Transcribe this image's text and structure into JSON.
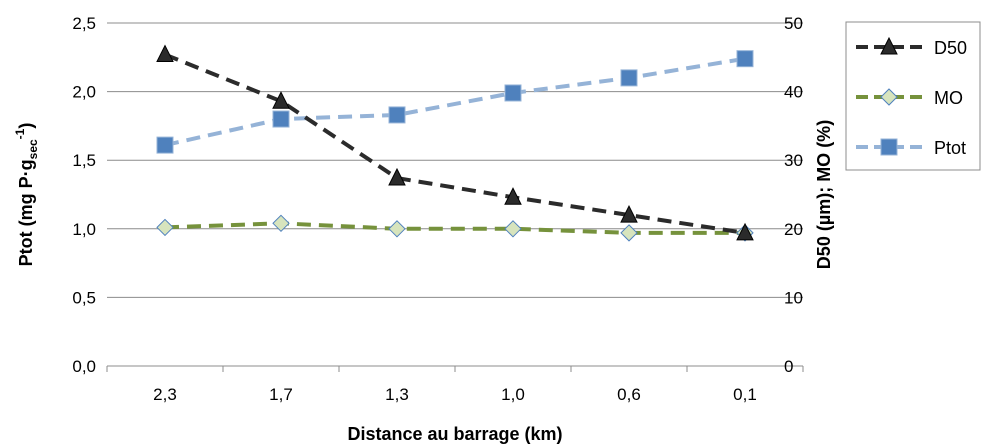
{
  "chart_data": {
    "type": "line",
    "categories": [
      "2,3",
      "1,7",
      "1,3",
      "1,0",
      "0,6",
      "0,1"
    ],
    "xlabel": "Distance au barrage (km)",
    "ylabel_left": {
      "main": "Ptot (mg P·g",
      "sub": "sec",
      "sup": "-1",
      "close": ")"
    },
    "ylabel_right": "D50 (µm); MO (%)",
    "y_left": {
      "min": 0,
      "max": 2.5,
      "ticks": [
        {
          "value": 0,
          "label": "0,0"
        },
        {
          "value": 0.5,
          "label": "0,5"
        },
        {
          "value": 1.0,
          "label": "1,0"
        },
        {
          "value": 1.5,
          "label": "1,5"
        },
        {
          "value": 2.0,
          "label": "2,0"
        },
        {
          "value": 2.5,
          "label": "2,5"
        }
      ]
    },
    "y_right": {
      "min": 0,
      "max": 50,
      "ticks": [
        {
          "value": 0,
          "label": "0"
        },
        {
          "value": 10,
          "label": "10"
        },
        {
          "value": 20,
          "label": "20"
        },
        {
          "value": 30,
          "label": "30"
        },
        {
          "value": 40,
          "label": "40"
        },
        {
          "value": 50,
          "label": "50"
        }
      ]
    },
    "grid": true,
    "legend_position": "right",
    "series": [
      {
        "name": "D50",
        "axis": "right",
        "values": [
          45.4,
          38.6,
          27.4,
          24.6,
          22.0,
          19.4
        ],
        "color": "#2b2b2b",
        "marker": "triangle",
        "marker_fill": "#2b2b2b"
      },
      {
        "name": "MO",
        "axis": "right",
        "values": [
          20.2,
          20.8,
          20.0,
          20.0,
          19.4,
          19.4
        ],
        "color": "#76923c",
        "marker": "diamond",
        "marker_fill": "#d7e4bd"
      },
      {
        "name": "Ptot",
        "axis": "left",
        "values": [
          1.61,
          1.8,
          1.83,
          1.99,
          2.1,
          2.24
        ],
        "color": "#95b3d7",
        "marker": "square",
        "marker_fill": "#4f81bd"
      }
    ]
  }
}
